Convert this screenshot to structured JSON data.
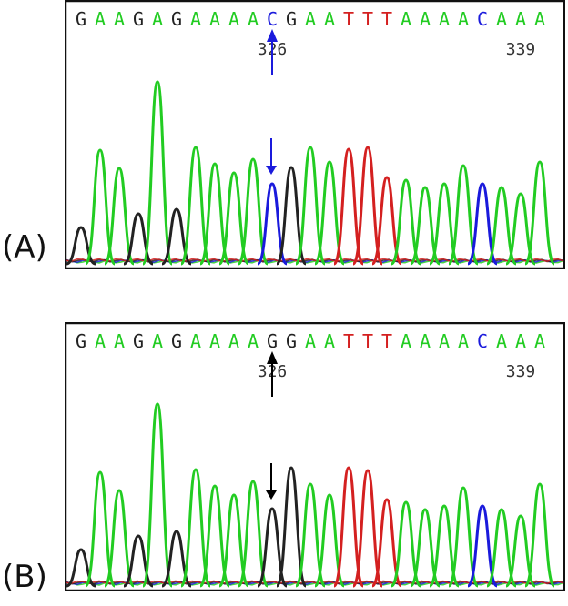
{
  "panels": [
    {
      "label": "(A)",
      "sequence": [
        "G",
        "A",
        "A",
        "G",
        "A",
        "G",
        "A",
        "A",
        "A",
        "A",
        "C",
        "G",
        "A",
        "A",
        "T",
        "T",
        "T",
        "A",
        "A",
        "A",
        "A",
        "C",
        "A",
        "A",
        "A"
      ],
      "position_labels": [
        {
          "text": "326",
          "index": 10
        },
        {
          "text": "339",
          "index": 23
        }
      ],
      "arrow_color": "#1a1adc",
      "variant_base": "C"
    },
    {
      "label": "(B)",
      "sequence": [
        "G",
        "A",
        "A",
        "G",
        "A",
        "G",
        "A",
        "A",
        "A",
        "A",
        "G",
        "G",
        "A",
        "A",
        "T",
        "T",
        "T",
        "A",
        "A",
        "A",
        "A",
        "C",
        "A",
        "A",
        "A"
      ],
      "position_labels": [
        {
          "text": "326",
          "index": 10
        },
        {
          "text": "339",
          "index": 23
        }
      ],
      "arrow_color": "#000000",
      "variant_base": "G"
    }
  ],
  "base_colors": {
    "A": "#22cc22",
    "C": "#1a1adc",
    "G": "#222222",
    "T": "#d42020"
  }
}
